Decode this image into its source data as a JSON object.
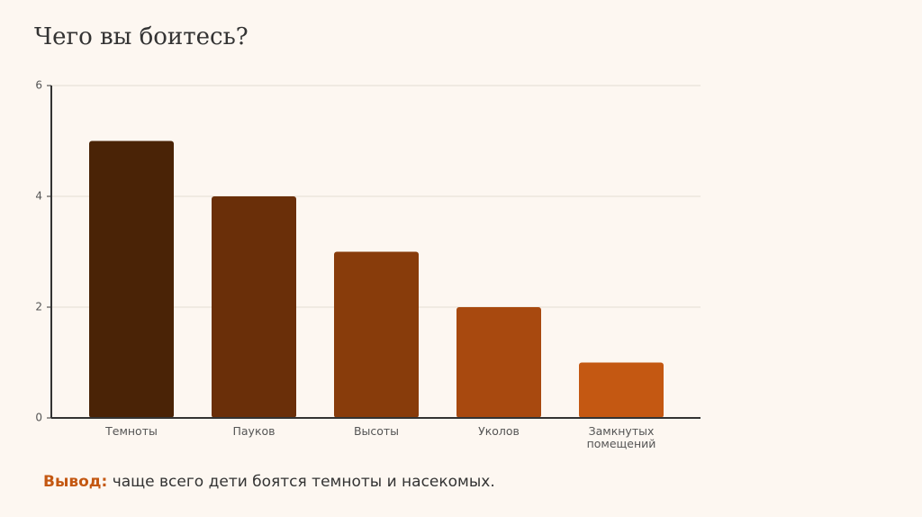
{
  "chart_data": {
    "type": "bar",
    "title": "Чего вы боитесь?",
    "categories": [
      "Темноты",
      "Пауков",
      "Высоты",
      "Уколов",
      "Замкнутых помещений"
    ],
    "values": [
      5,
      4,
      3,
      2,
      1
    ],
    "colors": [
      "#4a2306",
      "#6a2f09",
      "#883c0b",
      "#a8490f",
      "#c45812"
    ],
    "ylim": [
      0,
      6
    ],
    "yticks": [
      0,
      2,
      4,
      6
    ],
    "grid": true
  },
  "conclusion": {
    "label": "Вывод:",
    "text": "чаще всего дети боятся темноты и насекомых."
  }
}
